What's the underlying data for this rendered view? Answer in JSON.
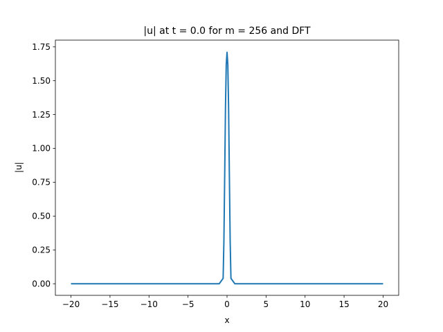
{
  "chart_data": {
    "type": "line",
    "title": "|u| at t = 0.0 for m = 256 and DFT",
    "xlabel": "x",
    "ylabel": "|u|",
    "xlim": [
      -22.0,
      22.0
    ],
    "ylim": [
      -0.0857,
      1.8
    ],
    "xticks": [
      -20,
      -15,
      -10,
      -5,
      0,
      5,
      10,
      15,
      20
    ],
    "xtick_labels": [
      "−20",
      "−15",
      "−10",
      "−5",
      "0",
      "5",
      "10",
      "15",
      "20"
    ],
    "yticks": [
      0.0,
      0.25,
      0.5,
      0.75,
      1.0,
      1.25,
      1.5,
      1.75
    ],
    "ytick_labels": [
      "0.00",
      "0.25",
      "0.50",
      "0.75",
      "1.00",
      "1.25",
      "1.50",
      "1.75"
    ],
    "grid": false,
    "series": [
      {
        "color": "#1f77b4",
        "x": [
          -20.0,
          -1.0,
          -0.5,
          -0.4,
          -0.3,
          -0.2,
          -0.1,
          0.0,
          0.1,
          0.2,
          0.3,
          0.4,
          0.5,
          1.0,
          20.0
        ],
        "y": [
          0.0,
          0.0,
          0.04,
          0.32,
          0.8,
          1.3,
          1.62,
          1.71,
          1.62,
          1.3,
          0.8,
          0.32,
          0.04,
          0.0,
          0.0
        ]
      }
    ]
  }
}
